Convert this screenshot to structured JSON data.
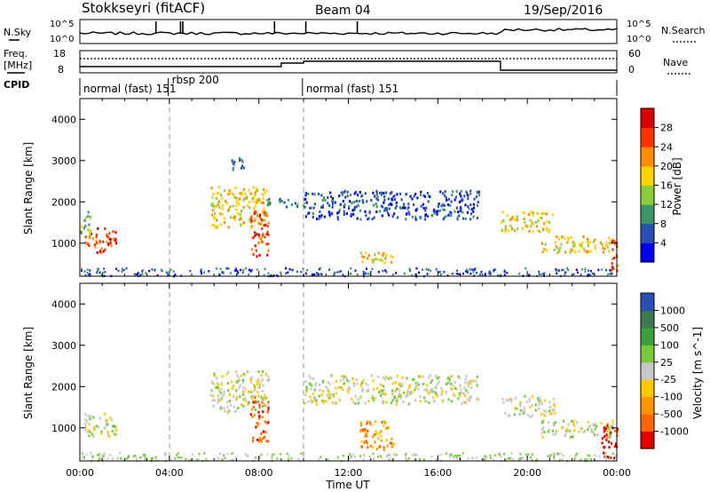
{
  "header": {
    "radar": "Stokkseyri (fitACF)",
    "beam": "Beam 04",
    "date": "19/Sep/2016"
  },
  "noise_panel": {
    "left_label": "N.Sky",
    "right_label": "N.Search",
    "left_ticks": [
      "10^5",
      "10^0"
    ],
    "right_ticks": [
      "10^5",
      "10^0"
    ]
  },
  "freq_panel": {
    "left_label_1": "Freq.",
    "left_label_2": "[MHz]",
    "right_label": "Nave",
    "left_ticks": [
      "18",
      "8"
    ],
    "right_ticks": [
      "60",
      "0"
    ]
  },
  "cpid": {
    "label": "CPID",
    "segments": [
      {
        "label": "normal (fast) 151",
        "start_hr": 0.0,
        "end_hr": 3.95
      },
      {
        "label": "rbsp 200",
        "start_hr": 3.95,
        "end_hr": 9.95
      },
      {
        "label": "normal (fast) 151",
        "start_hr": 9.95,
        "end_hr": 24.0
      }
    ]
  },
  "chart_data": [
    {
      "type": "heatmap",
      "parameter": "Power",
      "ylabel": "Slant Range [km]",
      "yticks": [
        "1000",
        "2000",
        "3000",
        "4000"
      ],
      "ylim": [
        200,
        4500
      ],
      "colorbar_label": "Power [dB]",
      "colorbar_ticks": [
        "4",
        "8",
        "12",
        "16",
        "20",
        "24",
        "28"
      ],
      "colorbar_colors": [
        "#0000f0",
        "#2850b4",
        "#3c9664",
        "#8ccd3c",
        "#ffd200",
        "#ff8c00",
        "#ff3200",
        "#dc0000"
      ],
      "regions": [
        {
          "t0": 0.2,
          "t1": 1.6,
          "r0": 800,
          "r1": 1400,
          "level": 6
        },
        {
          "t0": 0.0,
          "t1": 0.5,
          "r0": 1200,
          "r1": 1800,
          "level": 3
        },
        {
          "t0": 5.8,
          "t1": 8.4,
          "r0": 1400,
          "r1": 2400,
          "level": 4
        },
        {
          "t0": 7.6,
          "t1": 8.4,
          "r0": 700,
          "r1": 1800,
          "level": 6
        },
        {
          "t0": 6.6,
          "t1": 7.4,
          "r0": 2800,
          "r1": 3100,
          "level": 1
        },
        {
          "t0": 8.3,
          "t1": 10.0,
          "r0": 1900,
          "r1": 2100,
          "level": 2
        },
        {
          "t0": 10.0,
          "t1": 17.8,
          "r0": 1600,
          "r1": 2300,
          "level": 1
        },
        {
          "t0": 12.5,
          "t1": 14.0,
          "r0": 500,
          "r1": 800,
          "level": 4
        },
        {
          "t0": 18.8,
          "t1": 21.2,
          "r0": 1300,
          "r1": 1800,
          "level": 4
        },
        {
          "t0": 20.6,
          "t1": 23.8,
          "r0": 800,
          "r1": 1200,
          "level": 4
        },
        {
          "t0": 23.6,
          "t1": 24.0,
          "r0": 300,
          "r1": 1100,
          "level": 6
        }
      ]
    },
    {
      "type": "heatmap",
      "parameter": "Velocity",
      "xlabel": "Time UT",
      "ylabel": "Slant Range [km]",
      "yticks": [
        "1000",
        "2000",
        "3000",
        "4000"
      ],
      "xticks": [
        "00:00",
        "04:00",
        "08:00",
        "12:00",
        "16:00",
        "20:00",
        "00:00"
      ],
      "ylim": [
        200,
        4500
      ],
      "colorbar_label": "Velocity [m s^-1]",
      "colorbar_ticks": [
        "1000",
        "500",
        "100",
        "25",
        "-25",
        "-100",
        "-500",
        "-1000"
      ],
      "colorbar_colors": [
        "#2850b4",
        "#3c7850",
        "#3ca03c",
        "#78c83c",
        "#c8c8c8",
        "#ffc800",
        "#ff9600",
        "#ff6400",
        "#e60000"
      ],
      "regions": [
        {
          "t0": 0.2,
          "t1": 1.6,
          "r0": 800,
          "r1": 1400,
          "level": 4
        },
        {
          "t0": 5.8,
          "t1": 8.4,
          "r0": 1400,
          "r1": 2400,
          "level": 4
        },
        {
          "t0": 7.6,
          "t1": 8.4,
          "r0": 700,
          "r1": 1800,
          "level": 7
        },
        {
          "t0": 10.0,
          "t1": 17.8,
          "r0": 1600,
          "r1": 2300,
          "level": 4
        },
        {
          "t0": 12.5,
          "t1": 14.0,
          "r0": 500,
          "r1": 1200,
          "level": 6
        },
        {
          "t0": 18.8,
          "t1": 21.2,
          "r0": 1300,
          "r1": 1800,
          "level": 4
        },
        {
          "t0": 20.6,
          "t1": 23.8,
          "r0": 800,
          "r1": 1200,
          "level": 4
        },
        {
          "t0": 23.3,
          "t1": 24.0,
          "r0": 300,
          "r1": 1100,
          "level": 8
        }
      ]
    }
  ]
}
